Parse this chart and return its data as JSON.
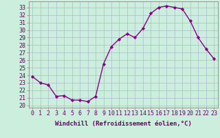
{
  "x": [
    0,
    1,
    2,
    3,
    4,
    5,
    6,
    7,
    8,
    9,
    10,
    11,
    12,
    13,
    14,
    15,
    16,
    17,
    18,
    19,
    20,
    21,
    22,
    23
  ],
  "y": [
    23.8,
    23.0,
    22.7,
    21.2,
    21.3,
    20.7,
    20.7,
    20.5,
    21.2,
    25.5,
    27.8,
    28.8,
    29.5,
    29.0,
    30.2,
    32.2,
    33.0,
    33.2,
    33.0,
    32.8,
    31.2,
    29.0,
    27.5,
    26.2
  ],
  "line_color": "#880088",
  "marker": "D",
  "markersize": 2.2,
  "linewidth": 1.0,
  "xlabel": "Windchill (Refroidissement éolien,°C)",
  "xlabel_fontsize": 6.5,
  "ylabel_ticks": [
    20,
    21,
    22,
    23,
    24,
    25,
    26,
    27,
    28,
    29,
    30,
    31,
    32,
    33
  ],
  "ylim": [
    19.7,
    33.8
  ],
  "xlim": [
    -0.5,
    23.5
  ],
  "background_color": "#cceedd",
  "grid_color": "#aabbcc",
  "tick_fontsize": 6.0,
  "label_color": "#660066"
}
